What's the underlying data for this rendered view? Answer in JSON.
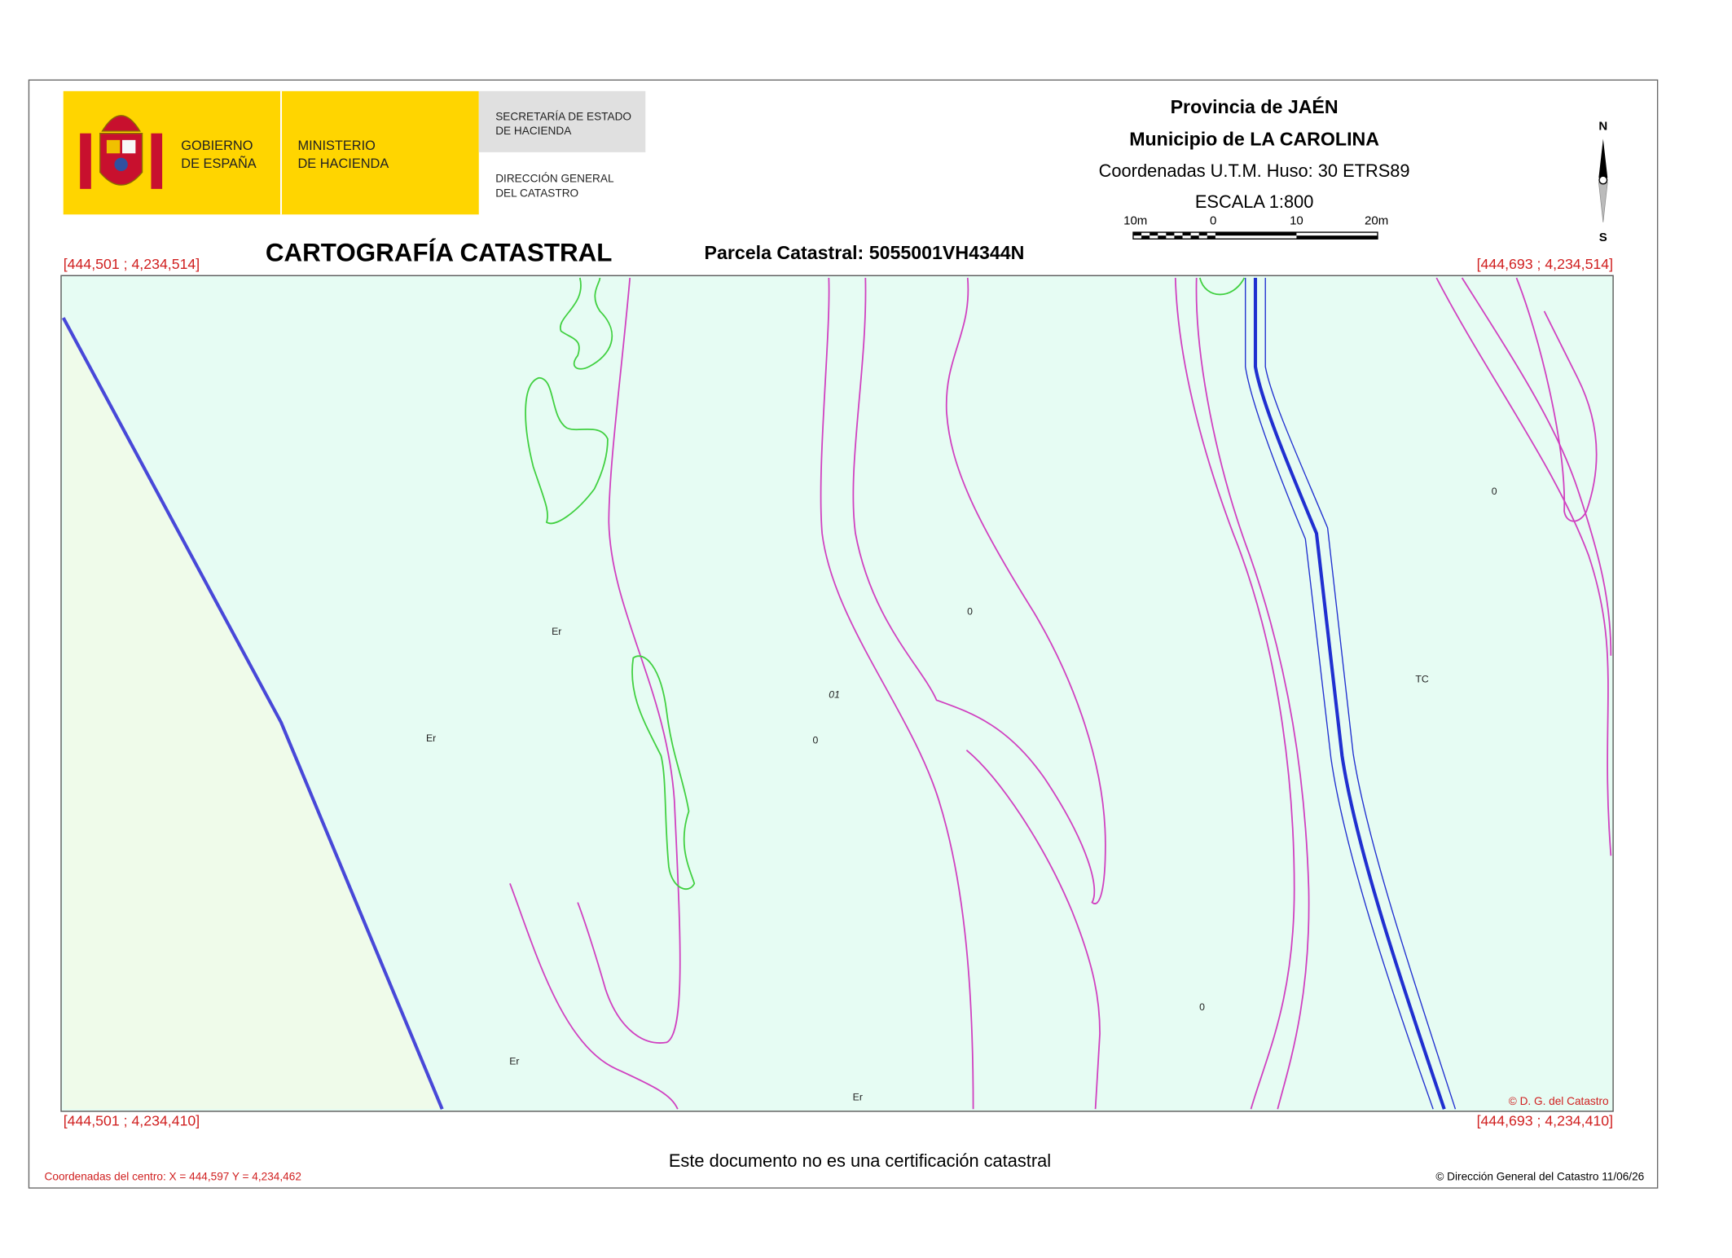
{
  "header": {
    "gov_line1": "GOBIERNO",
    "gov_line2": "DE ESPAÑA",
    "ministry_line1": "MINISTERIO",
    "ministry_line2": "DE HACIENDA",
    "secretaria_line1": "SECRETARÍA DE ESTADO",
    "secretaria_line2": "DE HACIENDA",
    "direccion_line1": "DIRECCIÓN GENERAL",
    "direccion_line2": "DEL CATASTRO",
    "province": "Provincia de JAÉN",
    "municipality": "Municipio de LA CAROLINA",
    "coordinate_system": "Coordenadas U.T.M. Huso: 30 ETRS89",
    "scale": "ESCALA 1:800",
    "scale_bar_labels": [
      "10m",
      "0",
      "10",
      "20m"
    ],
    "north": "N",
    "south": "S",
    "title": "CARTOGRAFÍA CATASTRAL",
    "parcel": "Parcela Catastral: 5055001VH4344N"
  },
  "corners": {
    "top_left": "[444,501 ; 4,234,514]",
    "top_right": "[444,693 ; 4,234,514]",
    "bottom_left": "[444,501 ; 4,234,410]",
    "bottom_right": "[444,693 ; 4,234,410]"
  },
  "map": {
    "labels": [
      "Er",
      "Er",
      "Er",
      "Er",
      "0",
      "0",
      "0",
      "0",
      "01",
      "TC"
    ],
    "copyright": "© D. G. del Catastro"
  },
  "footer": {
    "notice": "Este documento no es una certificación catastral",
    "center": "Coordenadas del centro: X = 444,597 Y = 4,234,462",
    "issuer": "© Dirección General del Catastro 11/06/26"
  }
}
